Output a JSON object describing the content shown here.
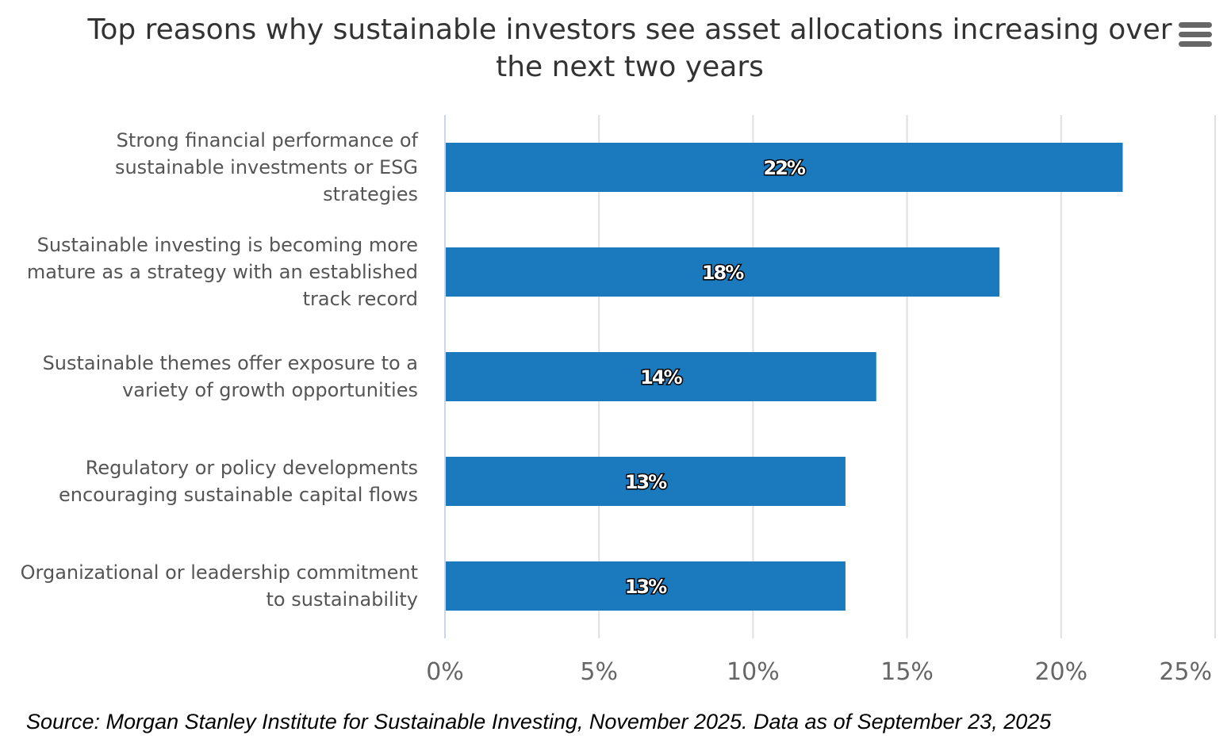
{
  "chart_data": {
    "type": "bar",
    "orientation": "horizontal",
    "title": "Top reasons why sustainable investors see asset allocations increasing over the next two years",
    "categories": [
      "Strong financial performance of sustainable investments or ESG strategies",
      "Sustainable investing is becoming more mature as a strategy with an established track record",
      "Sustainable themes offer exposure to a variety of growth opportunities",
      "Regulatory or policy developments encouraging sustainable capital flows",
      "Organizational or leadership commitment to sustainability"
    ],
    "category_lines": [
      [
        "Strong financial performance of",
        "sustainable investments or ESG",
        "strategies"
      ],
      [
        "Sustainable investing is becoming more",
        "mature as a strategy with an established",
        "track record"
      ],
      [
        "Sustainable themes offer exposure to a",
        "variety of growth opportunities"
      ],
      [
        "Regulatory or policy developments",
        "encouraging sustainable capital flows"
      ],
      [
        "Organizational or leadership commitment",
        "to sustainability"
      ]
    ],
    "values": [
      22,
      18,
      14,
      13,
      13
    ],
    "data_labels": [
      "22%",
      "18%",
      "14%",
      "13%",
      "13%"
    ],
    "xlim": [
      0,
      25
    ],
    "ticks": [
      0,
      5,
      10,
      15,
      20,
      25
    ],
    "tick_labels": [
      "0%",
      "5%",
      "10%",
      "15%",
      "20%",
      "25%"
    ],
    "grid": true,
    "xlabel": "",
    "ylabel": "",
    "bar_color": "#1a7abd"
  },
  "source": "Source: Morgan Stanley Institute for Sustainable Investing, November 2025. Data as of September 23, 2025",
  "menu_icon": "hamburger-menu-icon"
}
